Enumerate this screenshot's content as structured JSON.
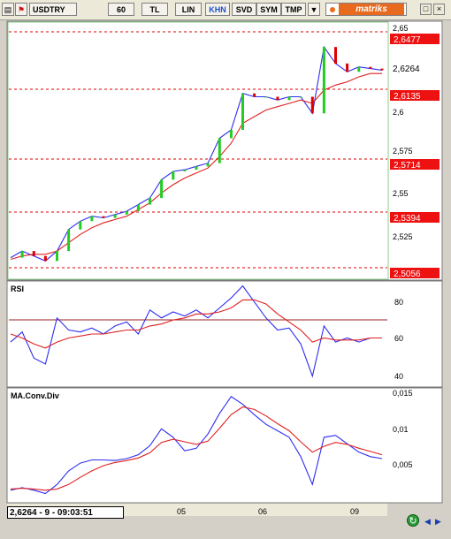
{
  "toolbar": {
    "symbol": "USDTRY",
    "period": "60",
    "currency": "TL",
    "scale": "LIN",
    "khn": "KHN",
    "svd": "SVD",
    "sym": "SYM",
    "tmp": "TMP",
    "brand": "matriks"
  },
  "price_panel": {
    "axis_ticks": [
      "2,65",
      "2,6",
      "2,575",
      "2,55",
      "2,525"
    ],
    "level_labels": [
      "2,6477",
      "2,6135",
      "2,5714",
      "2,5394",
      "2,5056"
    ],
    "last_price": "2,6264"
  },
  "rsi_panel": {
    "title": "RSI",
    "axis_ticks": [
      "80",
      "60",
      "40"
    ]
  },
  "macd_panel": {
    "title": "MA.Conv.Div",
    "axis_ticks": [
      "0,015",
      "0,01",
      "0,005"
    ]
  },
  "time_axis": {
    "labels": [
      "05",
      "06",
      "09"
    ]
  },
  "status": {
    "text": "2,6264 - 9 - 09:03:51"
  },
  "colors": {
    "price": "#2d2df0",
    "ma": "#e02020",
    "up": "#22cc22",
    "level": "#e00000",
    "label_bg": "#ee1111",
    "brand": "#e86a1e"
  },
  "chart_data": [
    {
      "type": "line",
      "title": "USDTRY",
      "ylim": [
        2.5,
        2.655
      ],
      "levels": [
        2.6477,
        2.6135,
        2.5714,
        2.5394,
        2.5056
      ],
      "series": [
        {
          "values": [
            2.513,
            2.517,
            2.514,
            2.511,
            2.517,
            2.53,
            2.535,
            2.538,
            2.537,
            2.539,
            2.541,
            2.545,
            2.549,
            2.56,
            2.565,
            2.566,
            2.568,
            2.57,
            2.585,
            2.59,
            2.612,
            2.61,
            2.61,
            2.608,
            2.61,
            2.61,
            2.6,
            2.64,
            2.63,
            2.625,
            2.628,
            2.627,
            2.626
          ]
        },
        {
          "values": [
            2.512,
            2.514,
            2.515,
            2.515,
            2.517,
            2.522,
            2.527,
            2.531,
            2.534,
            2.536,
            2.538,
            2.542,
            2.546,
            2.552,
            2.557,
            2.561,
            2.564,
            2.567,
            2.574,
            2.582,
            2.594,
            2.598,
            2.602,
            2.604,
            2.606,
            2.608,
            2.606,
            2.614,
            2.617,
            2.619,
            2.622,
            2.624,
            2.624
          ]
        }
      ]
    },
    {
      "type": "line",
      "title": "RSI",
      "ylim": [
        36,
        88
      ],
      "levels": [
        70
      ],
      "series": [
        {
          "values": [
            58,
            63,
            50,
            47,
            70,
            64,
            63,
            65,
            62,
            66,
            68,
            62,
            74,
            70,
            73,
            71,
            74,
            70,
            75,
            80,
            86,
            78,
            70,
            64,
            65,
            57,
            41,
            66,
            58,
            60,
            58,
            60,
            60
          ]
        },
        {
          "values": [
            62,
            60,
            57,
            55,
            58,
            60,
            61,
            62,
            62,
            63,
            64,
            64,
            66,
            67,
            69,
            70,
            72,
            72,
            73,
            75,
            79,
            79,
            77,
            72,
            68,
            64,
            58,
            60,
            59,
            59,
            59,
            60,
            60
          ]
        }
      ]
    },
    {
      "type": "line",
      "title": "MA.Conv.Div",
      "ylim": [
        -0.0015,
        0.016
      ],
      "series": [
        {
          "values": [
            0.0003,
            0.0007,
            0.0003,
            -0.0002,
            0.0012,
            0.0033,
            0.0045,
            0.005,
            0.005,
            0.0049,
            0.0052,
            0.0058,
            0.0072,
            0.0098,
            0.0085,
            0.0064,
            0.0068,
            0.009,
            0.0122,
            0.0148,
            0.0136,
            0.012,
            0.0105,
            0.0095,
            0.0085,
            0.0055,
            0.0012,
            0.0085,
            0.0088,
            0.0075,
            0.0062,
            0.0055,
            0.0052
          ]
        },
        {
          "values": [
            0.0005,
            0.0006,
            0.0005,
            0.0003,
            0.0005,
            0.0012,
            0.0023,
            0.0033,
            0.0041,
            0.0046,
            0.0049,
            0.0053,
            0.0061,
            0.0077,
            0.0082,
            0.0078,
            0.0074,
            0.0079,
            0.0099,
            0.012,
            0.0132,
            0.0128,
            0.0118,
            0.0106,
            0.0095,
            0.0078,
            0.0062,
            0.0071,
            0.0077,
            0.0074,
            0.0068,
            0.0063,
            0.0058
          ]
        }
      ]
    }
  ]
}
